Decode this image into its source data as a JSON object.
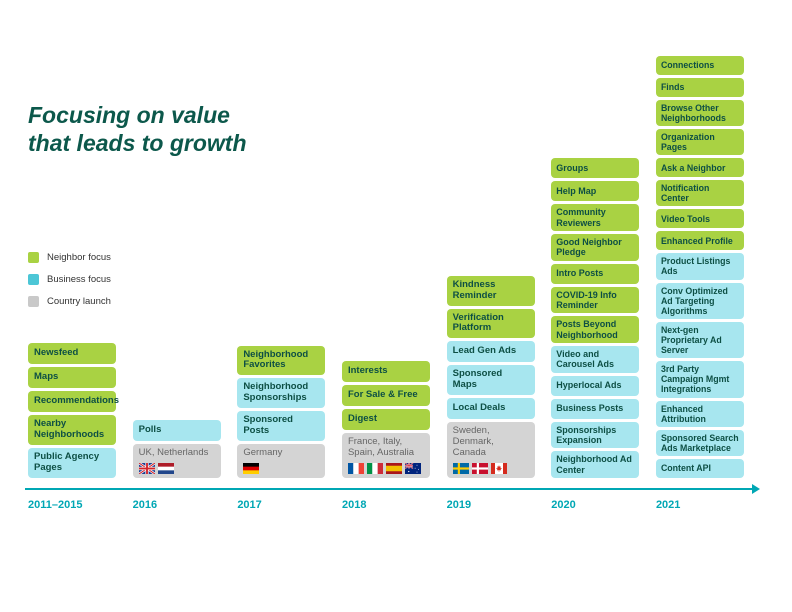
{
  "title": {
    "line1": "Focusing on value",
    "line2": "that leads to growth"
  },
  "legend": {
    "items": [
      {
        "label": "Neighbor focus",
        "type": "neighbor",
        "color": "#a9d243"
      },
      {
        "label": "Business focus",
        "type": "business",
        "color": "#4cc6d6"
      },
      {
        "label": "Country launch",
        "type": "country",
        "color": "#c9c9c9"
      }
    ]
  },
  "colors": {
    "neighbor_box": "#a9d243",
    "business_box": "#a7e6ef",
    "country_box": "#d4d4d4",
    "box_text": "#0d4f44",
    "country_text": "#666666",
    "title_text": "#0c584b",
    "axis": "#00a7b4"
  },
  "timeline": {
    "columns": [
      {
        "year": "2011–2015",
        "boxes": [
          {
            "label": "Newsfeed",
            "type": "neighbor"
          },
          {
            "label": "Maps",
            "type": "neighbor"
          },
          {
            "label": "Recommendations",
            "type": "neighbor"
          },
          {
            "label": "Nearby Neighborhoods",
            "type": "neighbor"
          },
          {
            "label": "Public Agency Pages",
            "type": "business"
          }
        ]
      },
      {
        "year": "2016",
        "boxes": [
          {
            "label": "Polls",
            "type": "business"
          },
          {
            "label": "UK, Netherlands",
            "type": "country",
            "flags": [
              "gb",
              "nl"
            ]
          }
        ]
      },
      {
        "year": "2017",
        "boxes": [
          {
            "label": "Neighborhood Favorites",
            "type": "neighbor"
          },
          {
            "label": "Neighborhood Sponsorships",
            "type": "business"
          },
          {
            "label": "Sponsored Posts",
            "type": "business"
          },
          {
            "label": "Germany",
            "type": "country",
            "flags": [
              "de"
            ]
          }
        ]
      },
      {
        "year": "2018",
        "boxes": [
          {
            "label": "Interests",
            "type": "neighbor"
          },
          {
            "label": "For Sale & Free",
            "type": "neighbor"
          },
          {
            "label": "Digest",
            "type": "neighbor"
          },
          {
            "label": "France, Italy, Spain, Australia",
            "type": "country",
            "flags": [
              "fr",
              "it",
              "es",
              "au"
            ]
          }
        ]
      },
      {
        "year": "2019",
        "boxes": [
          {
            "label": "Kindness Reminder",
            "type": "neighbor"
          },
          {
            "label": "Verification Platform",
            "type": "neighbor"
          },
          {
            "label": "Lead Gen Ads",
            "type": "business"
          },
          {
            "label": "Sponsored Maps",
            "type": "business"
          },
          {
            "label": "Local Deals",
            "type": "business"
          },
          {
            "label": "Sweden, Denmark, Canada",
            "type": "country",
            "flags": [
              "se",
              "dk",
              "ca"
            ]
          }
        ]
      },
      {
        "year": "2020",
        "boxes": [
          {
            "label": "Groups",
            "type": "neighbor"
          },
          {
            "label": "Help Map",
            "type": "neighbor"
          },
          {
            "label": "Community Reviewers",
            "type": "neighbor"
          },
          {
            "label": "Good Neighbor Pledge",
            "type": "neighbor"
          },
          {
            "label": "Intro Posts",
            "type": "neighbor"
          },
          {
            "label": "COVID-19 Info Reminder",
            "type": "neighbor"
          },
          {
            "label": "Posts Beyond Neighborhood",
            "type": "neighbor"
          },
          {
            "label": "Video and Carousel Ads",
            "type": "business"
          },
          {
            "label": "Hyperlocal Ads",
            "type": "business"
          },
          {
            "label": "Business Posts",
            "type": "business"
          },
          {
            "label": "Sponsorships Expansion",
            "type": "business"
          },
          {
            "label": "Neighborhood Ad Center",
            "type": "business"
          }
        ]
      },
      {
        "year": "2021",
        "boxes": [
          {
            "label": "Connections",
            "type": "neighbor"
          },
          {
            "label": "Finds",
            "type": "neighbor"
          },
          {
            "label": "Browse Other Neighborhoods",
            "type": "neighbor"
          },
          {
            "label": "Organization Pages",
            "type": "neighbor"
          },
          {
            "label": "Ask a Neighbor",
            "type": "neighbor"
          },
          {
            "label": "Notification Center",
            "type": "neighbor"
          },
          {
            "label": "Video Tools",
            "type": "neighbor"
          },
          {
            "label": "Enhanced Profile",
            "type": "neighbor"
          },
          {
            "label": "Product Listings Ads",
            "type": "business"
          },
          {
            "label": "Conv Optimized Ad Targeting Algorithms",
            "type": "business"
          },
          {
            "label": "Next-gen Proprietary Ad Server",
            "type": "business"
          },
          {
            "label": "3rd Party Campaign Mgmt Integrations",
            "type": "business"
          },
          {
            "label": "Enhanced Attribution",
            "type": "business"
          },
          {
            "label": "Sponsored Search Ads Marketplace",
            "type": "business"
          },
          {
            "label": "Content API",
            "type": "business"
          }
        ]
      }
    ]
  }
}
